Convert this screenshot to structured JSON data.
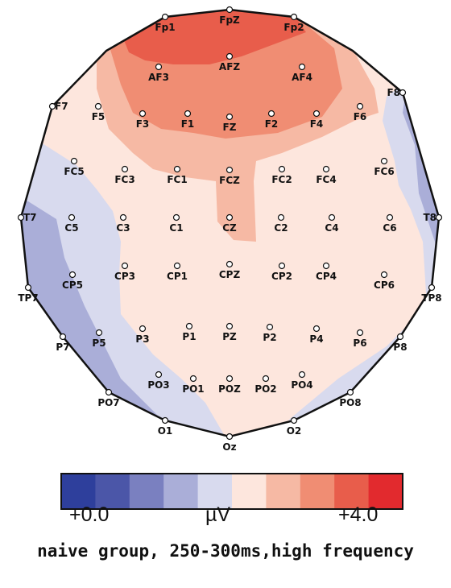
{
  "electrodes": [
    "Fp1",
    "FpZ",
    "Fp2",
    "AF3",
    "AFZ",
    "AF4",
    "F7",
    "F5",
    "F3",
    "F1",
    "FZ",
    "F2",
    "F4",
    "F6",
    "F8",
    "FC5",
    "FC3",
    "FC1",
    "FCZ",
    "FC2",
    "FC4",
    "FC6",
    "T7",
    "C5",
    "C3",
    "C1",
    "CZ",
    "C2",
    "C4",
    "C6",
    "T8",
    "TP7",
    "CP5",
    "CP3",
    "CP1",
    "CPZ",
    "CP2",
    "CP4",
    "CP6",
    "TP8",
    "P7",
    "P5",
    "P3",
    "P1",
    "PZ",
    "P2",
    "P4",
    "P6",
    "P8",
    "PO7",
    "PO3",
    "PO1",
    "POZ",
    "PO2",
    "PO4",
    "PO8",
    "O1",
    "Oz",
    "O2"
  ],
  "colorscale": {
    "colors": [
      "#2e3f9c",
      "#4b56a8",
      "#7a80c0",
      "#aaaed8",
      "#d8daee",
      "#fde6dd",
      "#f6b9a4",
      "#f08d73",
      "#e85d4b",
      "#e22a2e"
    ],
    "min_label": "+0.0",
    "unit_label": "µV",
    "max_label": "+4.0"
  },
  "caption": "naive group, 250-300ms,high frequency"
}
